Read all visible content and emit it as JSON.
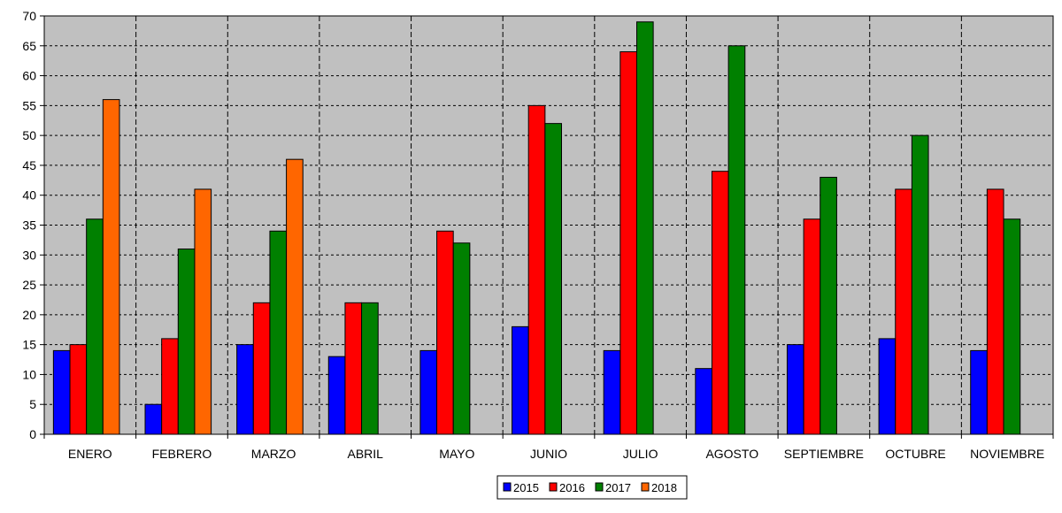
{
  "chart_data": {
    "type": "bar",
    "title": "",
    "xlabel": "",
    "ylabel": "",
    "ylim": [
      0,
      70
    ],
    "ytick_step": 5,
    "grid": true,
    "legend_position": "bottom",
    "plot_background": "#c0c0c0",
    "categories": [
      "ENERO",
      "FEBRERO",
      "MARZO",
      "ABRIL",
      "MAYO",
      "JUNIO",
      "JULIO",
      "AGOSTO",
      "SEPTIEMBRE",
      "OCTUBRE",
      "NOVIEMBRE"
    ],
    "series": [
      {
        "name": "2015",
        "color": "#0000ff",
        "values": [
          14,
          5,
          15,
          13,
          14,
          18,
          14,
          11,
          15,
          16,
          14
        ]
      },
      {
        "name": "2016",
        "color": "#ff0000",
        "values": [
          15,
          16,
          22,
          22,
          34,
          55,
          64,
          44,
          36,
          41,
          41
        ]
      },
      {
        "name": "2017",
        "color": "#008000",
        "values": [
          36,
          31,
          34,
          22,
          32,
          52,
          69,
          65,
          43,
          50,
          36
        ]
      },
      {
        "name": "2018",
        "color": "#ff6600",
        "values": [
          56,
          41,
          46,
          null,
          null,
          null,
          null,
          null,
          null,
          null,
          null
        ]
      }
    ]
  }
}
